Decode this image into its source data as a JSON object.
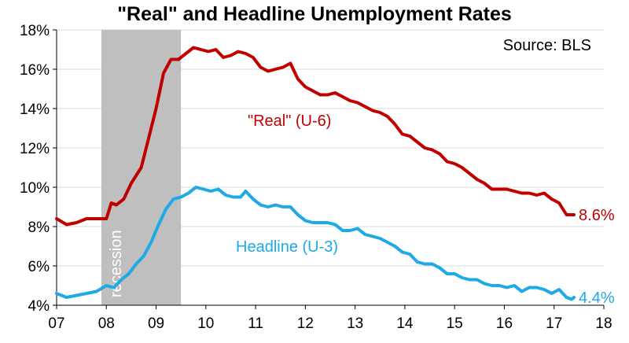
{
  "chart_data": {
    "type": "line",
    "title": "\"Real\" and Headline Unemployment Rates",
    "source_note": "Source: BLS",
    "xlabel": "",
    "ylabel": "",
    "x_ticks": [
      "07",
      "08",
      "09",
      "10",
      "11",
      "12",
      "13",
      "14",
      "15",
      "16",
      "17",
      "18"
    ],
    "x_range": [
      2007.0,
      2018.0
    ],
    "ylim": [
      4,
      18
    ],
    "y_ticks": [
      "4%",
      "6%",
      "8%",
      "10%",
      "12%",
      "14%",
      "16%",
      "18%"
    ],
    "y_tick_values": [
      4,
      6,
      8,
      10,
      12,
      14,
      16,
      18
    ],
    "grid": "horizontal",
    "recession": {
      "start": 2007.9,
      "end": 2009.5,
      "label": "recession",
      "color": "#bfbfbf"
    },
    "series": [
      {
        "name": "\"Real\" (U-6)",
        "color": "#c00000",
        "end_label": "8.6%",
        "points": [
          [
            2007.0,
            8.4
          ],
          [
            2007.2,
            8.1
          ],
          [
            2007.4,
            8.2
          ],
          [
            2007.6,
            8.4
          ],
          [
            2007.8,
            8.4
          ],
          [
            2008.0,
            8.4
          ],
          [
            2008.1,
            9.2
          ],
          [
            2008.2,
            9.1
          ],
          [
            2008.35,
            9.4
          ],
          [
            2008.5,
            10.2
          ],
          [
            2008.7,
            11.0
          ],
          [
            2008.85,
            12.5
          ],
          [
            2009.0,
            14.0
          ],
          [
            2009.15,
            15.8
          ],
          [
            2009.3,
            16.5
          ],
          [
            2009.45,
            16.5
          ],
          [
            2009.6,
            16.8
          ],
          [
            2009.75,
            17.1
          ],
          [
            2009.9,
            17.0
          ],
          [
            2010.05,
            16.9
          ],
          [
            2010.2,
            17.0
          ],
          [
            2010.35,
            16.6
          ],
          [
            2010.5,
            16.7
          ],
          [
            2010.65,
            16.9
          ],
          [
            2010.8,
            16.8
          ],
          [
            2010.95,
            16.6
          ],
          [
            2011.1,
            16.1
          ],
          [
            2011.25,
            15.9
          ],
          [
            2011.4,
            16.0
          ],
          [
            2011.55,
            16.1
          ],
          [
            2011.7,
            16.3
          ],
          [
            2011.85,
            15.5
          ],
          [
            2012.0,
            15.1
          ],
          [
            2012.15,
            14.9
          ],
          [
            2012.3,
            14.7
          ],
          [
            2012.45,
            14.7
          ],
          [
            2012.6,
            14.8
          ],
          [
            2012.75,
            14.6
          ],
          [
            2012.9,
            14.4
          ],
          [
            2013.05,
            14.3
          ],
          [
            2013.2,
            14.1
          ],
          [
            2013.35,
            13.9
          ],
          [
            2013.5,
            13.8
          ],
          [
            2013.65,
            13.6
          ],
          [
            2013.8,
            13.2
          ],
          [
            2013.95,
            12.7
          ],
          [
            2014.1,
            12.6
          ],
          [
            2014.25,
            12.3
          ],
          [
            2014.4,
            12.0
          ],
          [
            2014.55,
            11.9
          ],
          [
            2014.7,
            11.7
          ],
          [
            2014.85,
            11.3
          ],
          [
            2015.0,
            11.2
          ],
          [
            2015.15,
            11.0
          ],
          [
            2015.3,
            10.7
          ],
          [
            2015.45,
            10.4
          ],
          [
            2015.6,
            10.2
          ],
          [
            2015.75,
            9.9
          ],
          [
            2015.9,
            9.9
          ],
          [
            2016.05,
            9.9
          ],
          [
            2016.2,
            9.8
          ],
          [
            2016.35,
            9.7
          ],
          [
            2016.5,
            9.7
          ],
          [
            2016.65,
            9.6
          ],
          [
            2016.8,
            9.7
          ],
          [
            2016.95,
            9.4
          ],
          [
            2017.1,
            9.2
          ],
          [
            2017.25,
            8.6
          ],
          [
            2017.4,
            8.6
          ]
        ]
      },
      {
        "name": "Headline (U-3)",
        "color": "#1eaae6",
        "end_label": "4.4%",
        "points": [
          [
            2007.0,
            4.6
          ],
          [
            2007.2,
            4.4
          ],
          [
            2007.4,
            4.5
          ],
          [
            2007.6,
            4.6
          ],
          [
            2007.8,
            4.7
          ],
          [
            2008.0,
            5.0
          ],
          [
            2008.15,
            4.9
          ],
          [
            2008.3,
            5.3
          ],
          [
            2008.45,
            5.6
          ],
          [
            2008.6,
            6.1
          ],
          [
            2008.75,
            6.5
          ],
          [
            2008.9,
            7.2
          ],
          [
            2009.05,
            8.1
          ],
          [
            2009.2,
            8.9
          ],
          [
            2009.35,
            9.4
          ],
          [
            2009.5,
            9.5
          ],
          [
            2009.65,
            9.7
          ],
          [
            2009.8,
            10.0
          ],
          [
            2009.95,
            9.9
          ],
          [
            2010.1,
            9.8
          ],
          [
            2010.25,
            9.9
          ],
          [
            2010.4,
            9.6
          ],
          [
            2010.55,
            9.5
          ],
          [
            2010.7,
            9.5
          ],
          [
            2010.8,
            9.8
          ],
          [
            2010.95,
            9.4
          ],
          [
            2011.1,
            9.1
          ],
          [
            2011.25,
            9.0
          ],
          [
            2011.4,
            9.1
          ],
          [
            2011.55,
            9.0
          ],
          [
            2011.7,
            9.0
          ],
          [
            2011.85,
            8.6
          ],
          [
            2012.0,
            8.3
          ],
          [
            2012.15,
            8.2
          ],
          [
            2012.3,
            8.2
          ],
          [
            2012.45,
            8.2
          ],
          [
            2012.6,
            8.1
          ],
          [
            2012.75,
            7.8
          ],
          [
            2012.9,
            7.8
          ],
          [
            2013.05,
            7.9
          ],
          [
            2013.2,
            7.6
          ],
          [
            2013.35,
            7.5
          ],
          [
            2013.5,
            7.4
          ],
          [
            2013.65,
            7.2
          ],
          [
            2013.8,
            7.0
          ],
          [
            2013.95,
            6.7
          ],
          [
            2014.1,
            6.6
          ],
          [
            2014.25,
            6.2
          ],
          [
            2014.4,
            6.1
          ],
          [
            2014.55,
            6.1
          ],
          [
            2014.7,
            5.9
          ],
          [
            2014.85,
            5.6
          ],
          [
            2015.0,
            5.6
          ],
          [
            2015.15,
            5.4
          ],
          [
            2015.3,
            5.3
          ],
          [
            2015.45,
            5.3
          ],
          [
            2015.6,
            5.1
          ],
          [
            2015.75,
            5.0
          ],
          [
            2015.9,
            5.0
          ],
          [
            2016.05,
            4.9
          ],
          [
            2016.2,
            5.0
          ],
          [
            2016.35,
            4.7
          ],
          [
            2016.5,
            4.9
          ],
          [
            2016.65,
            4.9
          ],
          [
            2016.8,
            4.8
          ],
          [
            2016.95,
            4.6
          ],
          [
            2017.1,
            4.8
          ],
          [
            2017.25,
            4.4
          ],
          [
            2017.35,
            4.3
          ],
          [
            2017.4,
            4.4
          ]
        ]
      }
    ]
  }
}
